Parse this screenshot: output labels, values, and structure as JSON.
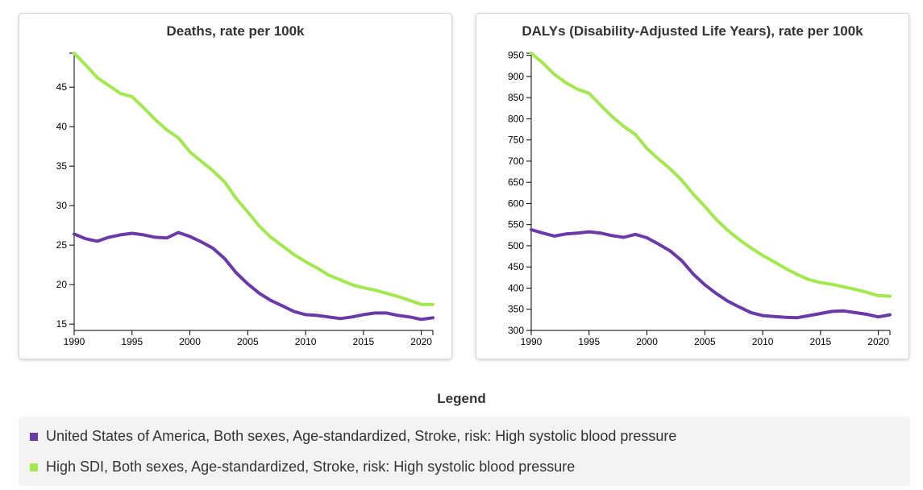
{
  "legend": {
    "title": "Legend",
    "items": [
      {
        "label": "United States of America, Both sexes, Age-standardized, Stroke, risk: High systolic blood pressure",
        "color": "#6a3aa6"
      },
      {
        "label": "High SDI, Both sexes, Age-standardized, Stroke, risk: High systolic blood pressure",
        "color": "#a3e84f"
      }
    ]
  },
  "chart_data": [
    {
      "type": "line",
      "title": "Deaths, rate per 100k",
      "x": [
        1990,
        1991,
        1992,
        1993,
        1994,
        1995,
        1996,
        1997,
        1998,
        1999,
        2000,
        2001,
        2002,
        2003,
        2004,
        2005,
        2006,
        2007,
        2008,
        2009,
        2010,
        2011,
        2012,
        2013,
        2014,
        2015,
        2016,
        2017,
        2018,
        2019,
        2020,
        2021
      ],
      "xlim": [
        1990,
        2021
      ],
      "ylim": [
        14.2,
        49.3
      ],
      "xticks": [
        1990,
        1995,
        2000,
        2005,
        2010,
        2015,
        2020
      ],
      "yticks": [
        15,
        20,
        25,
        30,
        35,
        40,
        45
      ],
      "series": [
        {
          "name": "United States of America, Both sexes, Age-standardized, Stroke, risk: High systolic blood pressure",
          "color": "#6a3aa6",
          "values": [
            26.4,
            25.8,
            25.5,
            26.0,
            26.3,
            26.5,
            26.3,
            26.0,
            25.9,
            26.6,
            26.1,
            25.4,
            24.6,
            23.3,
            21.5,
            20.1,
            18.9,
            18.0,
            17.3,
            16.6,
            16.2,
            16.1,
            15.9,
            15.7,
            15.9,
            16.2,
            16.4,
            16.4,
            16.1,
            15.9,
            15.6,
            15.8
          ]
        },
        {
          "name": "High SDI, Both sexes, Age-standardized, Stroke, risk: High systolic blood pressure",
          "color": "#a3e84f",
          "values": [
            49.3,
            47.8,
            46.2,
            45.2,
            44.2,
            43.8,
            42.4,
            40.9,
            39.6,
            38.6,
            36.8,
            35.6,
            34.4,
            33.0,
            30.9,
            29.2,
            27.4,
            26.0,
            24.9,
            23.8,
            22.9,
            22.1,
            21.2,
            20.6,
            20.0,
            19.6,
            19.3,
            18.9,
            18.5,
            18.0,
            17.5,
            17.5
          ]
        }
      ]
    },
    {
      "type": "line",
      "title": "DALYs (Disability-Adjusted Life Years), rate per 100k",
      "x": [
        1990,
        1991,
        1992,
        1993,
        1994,
        1995,
        1996,
        1997,
        1998,
        1999,
        2000,
        2001,
        2002,
        2003,
        2004,
        2005,
        2006,
        2007,
        2008,
        2009,
        2010,
        2011,
        2012,
        2013,
        2014,
        2015,
        2016,
        2017,
        2018,
        2019,
        2020,
        2021
      ],
      "xlim": [
        1990,
        2021
      ],
      "ylim": [
        300,
        955
      ],
      "xticks": [
        1990,
        1995,
        2000,
        2005,
        2010,
        2015,
        2020
      ],
      "yticks": [
        300,
        350,
        400,
        450,
        500,
        550,
        600,
        650,
        700,
        750,
        800,
        850,
        900,
        950
      ],
      "series": [
        {
          "name": "United States of America, Both sexes, Age-standardized, Stroke, risk: High systolic blood pressure",
          "color": "#6a3aa6",
          "values": [
            538,
            530,
            523,
            528,
            530,
            533,
            530,
            524,
            520,
            527,
            519,
            504,
            488,
            465,
            433,
            408,
            387,
            369,
            355,
            342,
            335,
            333,
            331,
            330,
            335,
            340,
            345,
            346,
            342,
            338,
            332,
            337
          ]
        },
        {
          "name": "High SDI, Both sexes, Age-standardized, Stroke, risk: High systolic blood pressure",
          "color": "#a3e84f",
          "values": [
            955,
            932,
            905,
            885,
            870,
            860,
            832,
            805,
            782,
            763,
            730,
            705,
            682,
            655,
            622,
            593,
            562,
            536,
            514,
            495,
            477,
            462,
            446,
            432,
            420,
            413,
            409,
            403,
            397,
            390,
            382,
            381
          ]
        }
      ]
    }
  ]
}
